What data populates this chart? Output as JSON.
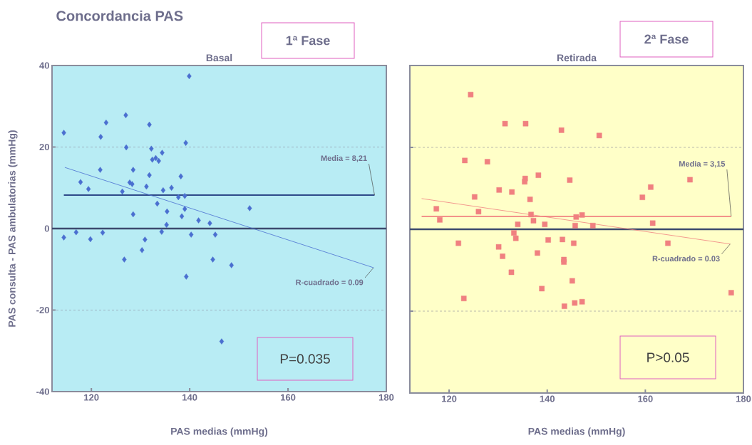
{
  "chart_data": [
    {
      "type": "scatter",
      "title": "Concordancia PAS",
      "subtitle": "Basal",
      "xlabel": "PAS medias (mmHg)",
      "ylabel": "PAS consulta - PAS ambulatorias (mmHg)",
      "xlim": [
        112,
        180
      ],
      "xticks": [
        120,
        140,
        160,
        180
      ],
      "ylim": [
        -40,
        40
      ],
      "yticks": [
        -40,
        -20,
        0,
        20,
        40
      ],
      "grid": "y",
      "ref_lines": [
        {
          "axis": "y",
          "value": 0,
          "color": "#3c4a6e"
        }
      ],
      "series": [
        {
          "marker": "diamond",
          "color": "#4a6fd0",
          "x": [
            114.4,
            127.0,
            123.0,
            131.8,
            121.9,
            127.1,
            132.2,
            139.2,
            139.9,
            134.4,
            132.4,
            133.1,
            133.7,
            121.8,
            128.5,
            131.8,
            138.2,
            117.8,
            119.4,
            127.8,
            128.3,
            131.2,
            126.3,
            134.6,
            136.3,
            137.7,
            139.0,
            133.4,
            135.4,
            139.0,
            128.5,
            138.4,
            141.8,
            144.1,
            135.3,
            152.2,
            114.4,
            116.9,
            119.8,
            122.3,
            134.3,
            140.3,
            145.2,
            130.9,
            130.3,
            126.7,
            144.7,
            148.5,
            139.3,
            146.5
          ],
          "values": [
            23.5,
            27.8,
            26.0,
            25.5,
            22.5,
            19.9,
            19.6,
            21.0,
            37.4,
            18.6,
            16.9,
            17.3,
            16.6,
            14.4,
            14.4,
            13.1,
            12.8,
            11.4,
            9.7,
            11.3,
            10.9,
            10.3,
            9.1,
            9.4,
            10.0,
            7.7,
            8.0,
            6.1,
            4.2,
            4.8,
            3.5,
            3.0,
            2.0,
            1.3,
            0.9,
            5.0,
            -2.2,
            -0.9,
            -2.6,
            -1.0,
            -0.8,
            -1.5,
            -1.5,
            -2.7,
            -5.3,
            -7.6,
            -7.6,
            -9.0,
            -11.8,
            -27.7
          ]
        },
        {
          "type": "line",
          "marker": "none",
          "color": "#2e4a8a",
          "x": [
            114.4,
            177.6
          ],
          "values": [
            8.21,
            8.21
          ]
        },
        {
          "type": "line",
          "marker": "none",
          "color": "#4a6fd0",
          "x": [
            114.6,
            177.4
          ],
          "values": [
            15.0,
            -9.6
          ]
        }
      ],
      "annotations": [
        "1ª Fase",
        "P=0.035",
        {
          "text": "Media = 8,21",
          "x": 177.6,
          "y": 8.21
        },
        {
          "text": "R-cuadrado = 0.09",
          "x": 177.4,
          "y": -9.6
        }
      ]
    },
    {
      "type": "scatter",
      "subtitle": "Retirada",
      "xlabel": "PAS medias (mmHg)",
      "xlim": [
        112,
        180
      ],
      "xticks": [
        120,
        140,
        160,
        180
      ],
      "ylim": [
        -40,
        40
      ],
      "yticks": [
        -40,
        -20,
        0,
        20,
        40
      ],
      "grid": "y",
      "tick_labels": "x",
      "ref_lines": [
        {
          "axis": "y",
          "value": 0,
          "color": "#3c4a6e"
        }
      ],
      "series": [
        {
          "marker": "square",
          "color": "#f08080",
          "x": [
            124.4,
            131.4,
            135.6,
            142.9,
            150.6,
            123.2,
            127.8,
            135.5,
            138.2,
            135.4,
            144.6,
            169.1,
            161.1,
            159.4,
            130.2,
            132.8,
            125.2,
            136.5,
            117.4,
            126.0,
            118.1,
            136.7,
            137.2,
            145.9,
            147.1,
            145.7,
            134.0,
            139.5,
            149.3,
            161.5,
            133.2,
            133.6,
            140.2,
            143.1,
            145.4,
            164.6,
            121.9,
            130.1,
            130.9,
            138.0,
            143.4,
            143.4,
            132.7,
            145.1,
            138.9,
            123.0,
            143.5,
            145.6,
            147.1,
            177.5
          ],
          "values": [
            32.9,
            25.8,
            25.8,
            24.2,
            22.9,
            16.8,
            16.5,
            12.4,
            13.2,
            11.6,
            12.0,
            12.1,
            10.3,
            7.8,
            9.6,
            9.1,
            7.9,
            7.3,
            5.0,
            4.3,
            2.3,
            3.6,
            2.1,
            3.0,
            3.5,
            0.9,
            1.2,
            1.2,
            0.9,
            1.5,
            -0.9,
            -2.2,
            -2.6,
            -2.5,
            -3.4,
            -3.4,
            -3.4,
            -4.3,
            -6.6,
            -5.8,
            -7.4,
            -8.0,
            -10.5,
            -12.6,
            -14.5,
            -16.9,
            -18.8,
            -18.0,
            -17.7,
            -15.5
          ]
        },
        {
          "type": "line",
          "marker": "none",
          "color": "#f08080",
          "x": [
            114.4,
            177.5
          ],
          "values": [
            3.15,
            3.15
          ]
        },
        {
          "type": "line",
          "marker": "none",
          "color": "#f08080",
          "x": [
            114.4,
            177.3
          ],
          "values": [
            7.5,
            -3.6
          ]
        }
      ],
      "annotations": [
        "2ª Fase",
        "P>0.05",
        {
          "text": "Media = 3,15",
          "x": 177.5,
          "y": 3.15
        },
        {
          "text": "R-cuadrado = 0.03",
          "x": 177.3,
          "y": -3.6
        }
      ]
    }
  ]
}
